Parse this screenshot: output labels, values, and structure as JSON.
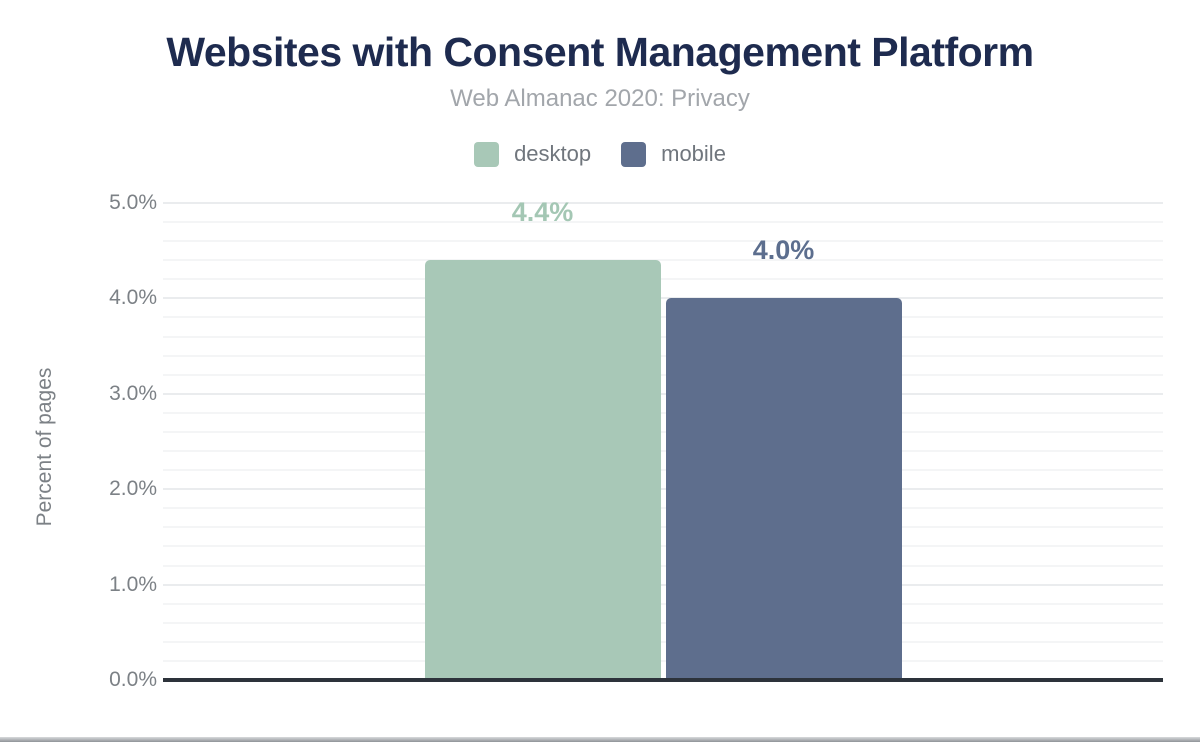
{
  "page": {
    "background": "#ffffff",
    "bottom_strip_top_color": "#d8dadc",
    "bottom_strip_bottom_color": "#8f9398"
  },
  "colors": {
    "title_text": "#1e2b4f",
    "subtitle_text": "#a2a6ab",
    "legend_text": "#70767d",
    "axis_text": "#7c8186",
    "axis_line": "#2d333b",
    "gridline_major": "#eaecee",
    "gridline_minor": "#f4f5f6"
  },
  "chart_data": {
    "type": "bar",
    "title": "Websites with Consent Management Platform",
    "subtitle": "Web Almanac 2020: Privacy",
    "xlabel": "",
    "ylabel": "Percent of pages",
    "categories": [
      "Websites with Consent Management Platform"
    ],
    "series": [
      {
        "name": "desktop",
        "value": 4.4,
        "label": "4.4%",
        "color": "#a8c8b7",
        "label_color": "#a4c7b4"
      },
      {
        "name": "mobile",
        "value": 4.0,
        "label": "4.0%",
        "color": "#5e6e8d",
        "label_color": "#5c6e8e"
      }
    ],
    "ylim": [
      0,
      5
    ],
    "yticks": [
      {
        "value": 0,
        "label": "0.0%"
      },
      {
        "value": 1,
        "label": "1.0%"
      },
      {
        "value": 2,
        "label": "2.0%"
      },
      {
        "value": 3,
        "label": "3.0%"
      },
      {
        "value": 4,
        "label": "4.0%"
      },
      {
        "value": 5,
        "label": "5.0%"
      }
    ],
    "minor_tick_step": 0.2,
    "grid": "on",
    "legend_position": "top"
  }
}
